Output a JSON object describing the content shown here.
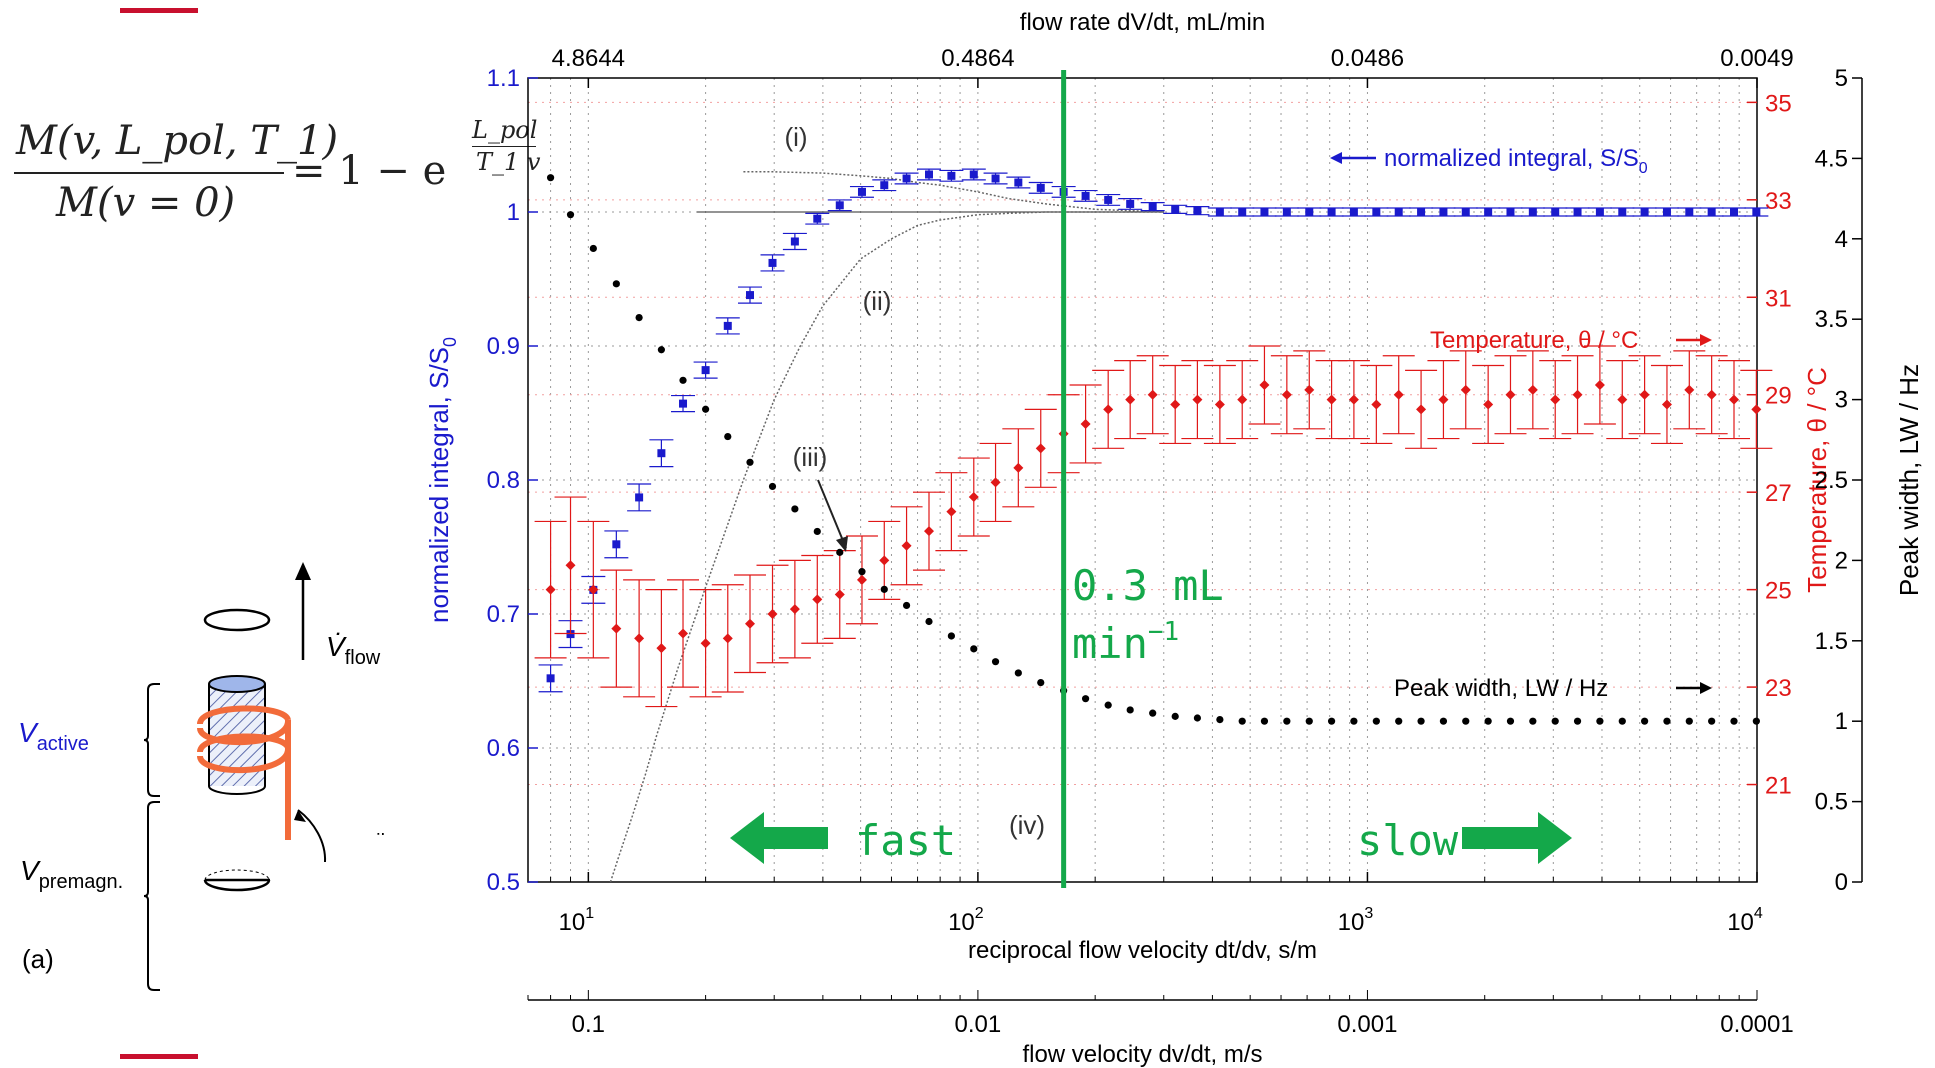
{
  "formula": {
    "numerator": "M(v, L_pol, T_1)",
    "denominator": "M(v = 0)",
    "rhs": "= 1 − e",
    "exponent_numerator": "L_pol",
    "exponent_denominator": "T_1 v"
  },
  "schematic": {
    "v_flow_label": "V̇",
    "v_flow_sub": "flow",
    "v_active_label": "V",
    "v_active_sub": "active",
    "v_premagn_label": "V",
    "v_premagn_sub": "premagn.",
    "coil_label": "coil",
    "panel_label": "(a)"
  },
  "colors": {
    "integral": "#1a1acc",
    "temperature": "#e01818",
    "peak_width": "#000000",
    "marker_line": "#14a84a",
    "grid": "#9a9a9a"
  },
  "chart_data": {
    "type": "scatter",
    "x_scale": "log",
    "xlim": [
      7,
      10000
    ],
    "xlabel": "reciprocal flow velocity dt/dv, s/m",
    "xticks": [
      {
        "value": 10,
        "label": "10",
        "sup": "1"
      },
      {
        "value": 100,
        "label": "10",
        "sup": "2"
      },
      {
        "value": 1000,
        "label": "10",
        "sup": "3"
      },
      {
        "value": 10000,
        "label": "10",
        "sup": "4"
      }
    ],
    "top_axis": {
      "label": "flow rate dV/dt, mL/min",
      "ticks": [
        {
          "x": 10,
          "label": "4.8644"
        },
        {
          "x": 100,
          "label": "0.4864"
        },
        {
          "x": 1000,
          "label": "0.0486"
        },
        {
          "x": 10000,
          "label": "0.0049"
        }
      ]
    },
    "bottom_axis2": {
      "label": "flow velocity dv/dt, m/s",
      "ticks": [
        {
          "x": 10,
          "label": "0.1"
        },
        {
          "x": 100,
          "label": "0.01"
        },
        {
          "x": 1000,
          "label": "0.001"
        },
        {
          "x": 10000,
          "label": "0.0001"
        }
      ]
    },
    "left_axis": {
      "label": "normalized integral, S/S",
      "label_sub": "0",
      "ylim": [
        0.5,
        1.1
      ],
      "ticks": [
        "0.5",
        "0.6",
        "0.7",
        "0.8",
        "0.9",
        "1",
        "1.1"
      ]
    },
    "right_axis": {
      "label": "Temperature, θ / °C",
      "ylim": [
        19,
        35.5
      ],
      "ticks": [
        "21",
        "23",
        "25",
        "27",
        "29",
        "31",
        "33",
        "35"
      ]
    },
    "far_right_axis": {
      "label": "Peak width, LW / Hz",
      "ylim": [
        0,
        5
      ],
      "ticks": [
        "0",
        "0.5",
        "1",
        "1.5",
        "2",
        "2.5",
        "3",
        "3.5",
        "4",
        "4.5",
        "5"
      ]
    },
    "series": [
      {
        "name": "normalized integral, S/S",
        "name_sub": "0",
        "axis": "left",
        "marker": "square",
        "x": [
          8,
          9,
          10.3,
          11.8,
          13.5,
          15.4,
          17.5,
          20,
          22.8,
          26,
          29.7,
          33.9,
          38.7,
          44.2,
          50.4,
          57.5,
          65.6,
          74.9,
          85.5,
          97.6,
          111,
          127,
          145,
          166,
          189,
          216,
          246,
          281,
          321,
          366,
          418,
          477,
          544,
          621,
          709,
          809,
          923,
          1054,
          1203,
          1373,
          1567,
          1788,
          2041,
          2329,
          2658,
          3034,
          3462,
          3951,
          4510,
          5146,
          5873,
          6702,
          7649,
          8729,
          9962
        ],
        "y": [
          0.652,
          0.685,
          0.718,
          0.752,
          0.787,
          0.82,
          0.857,
          0.882,
          0.915,
          0.938,
          0.962,
          0.978,
          0.995,
          1.005,
          1.015,
          1.02,
          1.025,
          1.028,
          1.027,
          1.028,
          1.025,
          1.022,
          1.018,
          1.015,
          1.012,
          1.009,
          1.006,
          1.004,
          1.002,
          1.001,
          1.0,
          1.0,
          1.0,
          1.0,
          1.0,
          1.0,
          1.0,
          1.0,
          1.0,
          1.0,
          1.0,
          1.0,
          1.0,
          1.0,
          1.0,
          1.0,
          1.0,
          1.0,
          1.0,
          1.0,
          1.0,
          1.0,
          1.0,
          1.0,
          1.0
        ],
        "err": [
          0.01,
          0.01,
          0.01,
          0.01,
          0.01,
          0.01,
          0.006,
          0.006,
          0.006,
          0.006,
          0.006,
          0.006,
          0.004,
          0.004,
          0.004,
          0.004,
          0.004,
          0.004,
          0.004,
          0.004,
          0.004,
          0.004,
          0.004,
          0.004,
          0.004,
          0.004,
          0.004,
          0.003,
          0.003,
          0.003,
          0.003,
          0.003,
          0.003,
          0.003,
          0.003,
          0.003,
          0.003,
          0.003,
          0.003,
          0.003,
          0.003,
          0.003,
          0.003,
          0.003,
          0.003,
          0.003,
          0.003,
          0.003,
          0.003,
          0.003,
          0.003,
          0.003,
          0.003,
          0.003,
          0.003
        ]
      },
      {
        "name": "Temperature, θ / °C",
        "axis": "right",
        "marker": "diamond",
        "x": [
          8,
          9,
          10.3,
          11.8,
          13.5,
          15.4,
          17.5,
          20,
          22.8,
          26,
          29.7,
          33.9,
          38.7,
          44.2,
          50.4,
          57.5,
          65.6,
          74.9,
          85.5,
          97.6,
          111,
          127,
          145,
          166,
          189,
          216,
          246,
          281,
          321,
          366,
          418,
          477,
          544,
          621,
          709,
          809,
          923,
          1054,
          1203,
          1373,
          1567,
          1788,
          2041,
          2329,
          2658,
          3034,
          3462,
          3951,
          4510,
          5146,
          5873,
          6702,
          7649,
          8729,
          9962
        ],
        "y": [
          25.0,
          25.5,
          25.0,
          24.2,
          24.0,
          23.8,
          24.1,
          23.9,
          24.0,
          24.3,
          24.5,
          24.6,
          24.8,
          24.9,
          25.2,
          25.6,
          25.9,
          26.2,
          26.6,
          26.9,
          27.2,
          27.5,
          27.9,
          28.2,
          28.4,
          28.7,
          28.9,
          29.0,
          28.8,
          28.9,
          28.8,
          28.9,
          29.2,
          29.0,
          29.1,
          28.9,
          28.9,
          28.8,
          29.0,
          28.7,
          28.9,
          29.1,
          28.8,
          29.0,
          29.1,
          28.9,
          29.0,
          29.2,
          28.9,
          29.0,
          28.8,
          29.1,
          29.0,
          28.9,
          28.7
        ],
        "err": [
          1.4,
          1.4,
          1.4,
          1.2,
          1.2,
          1.2,
          1.1,
          1.1,
          1.1,
          1.0,
          1.0,
          1.0,
          0.9,
          0.9,
          0.9,
          0.8,
          0.8,
          0.8,
          0.8,
          0.8,
          0.8,
          0.8,
          0.8,
          0.8,
          0.8,
          0.8,
          0.8,
          0.8,
          0.8,
          0.8,
          0.8,
          0.8,
          0.8,
          0.8,
          0.8,
          0.8,
          0.8,
          0.8,
          0.8,
          0.8,
          0.8,
          0.8,
          0.8,
          0.8,
          0.8,
          0.8,
          0.8,
          0.8,
          0.8,
          0.8,
          0.8,
          0.8,
          0.8,
          0.8,
          0.8
        ]
      },
      {
        "name": "Peak width, LW / Hz",
        "axis": "far_right",
        "marker": "dot",
        "x": [
          8,
          9,
          10.3,
          11.8,
          13.5,
          15.4,
          17.5,
          20,
          22.8,
          26,
          29.7,
          33.9,
          38.7,
          44.2,
          50.4,
          57.5,
          65.6,
          74.9,
          85.5,
          97.6,
          111,
          127,
          145,
          166,
          189,
          216,
          246,
          281,
          321,
          366,
          418,
          477,
          544,
          621,
          709,
          809,
          923,
          1054,
          1203,
          1373,
          1567,
          1788,
          2041,
          2329,
          2658,
          3034,
          3462,
          3951,
          4510,
          5146,
          5873,
          6702,
          7649,
          8729,
          9962
        ],
        "y": [
          4.38,
          4.15,
          3.94,
          3.72,
          3.51,
          3.31,
          3.12,
          2.94,
          2.77,
          2.61,
          2.46,
          2.32,
          2.18,
          2.05,
          1.93,
          1.82,
          1.72,
          1.62,
          1.53,
          1.45,
          1.37,
          1.3,
          1.24,
          1.19,
          1.14,
          1.1,
          1.07,
          1.05,
          1.03,
          1.02,
          1.01,
          1.0,
          1.0,
          1.0,
          1.0,
          1.0,
          1.0,
          1.0,
          1.0,
          1.0,
          1.0,
          1.0,
          1.0,
          1.0,
          1.0,
          1.0,
          1.0,
          1.0,
          1.0,
          1.0,
          1.0,
          1.0,
          1.0,
          1.0,
          1.0
        ]
      }
    ],
    "model_curves": {
      "i": {
        "x": [
          25,
          30,
          40,
          50,
          60,
          70,
          80,
          100,
          120,
          150,
          200,
          300
        ],
        "y": [
          1.03,
          1.03,
          1.029,
          1.027,
          1.025,
          1.022,
          1.02,
          1.015,
          1.01,
          1.006,
          1.002,
          1.0
        ]
      },
      "ii": {
        "x": [
          11.4,
          12,
          13,
          14,
          15,
          17,
          20,
          25,
          30,
          35,
          40,
          50,
          60,
          70,
          80,
          100,
          120,
          150,
          200,
          300
        ],
        "y": [
          0.5,
          0.52,
          0.55,
          0.58,
          0.61,
          0.66,
          0.72,
          0.8,
          0.86,
          0.9,
          0.93,
          0.965,
          0.98,
          0.99,
          0.994,
          0.998,
          0.999,
          1.0,
          1.0,
          1.0
        ]
      },
      "hline": {
        "x": [
          19,
          300
        ],
        "y": [
          1.0,
          1.0
        ]
      }
    },
    "marker_x": 166,
    "annotations": {
      "i": "(i)",
      "ii": "(ii)",
      "iii": "(iii)",
      "iv": "(iv)",
      "flow_rate": "0.3 mL",
      "flow_unit": "min",
      "flow_exp": "−1",
      "fast": "fast",
      "slow": "slow",
      "legend_integral": "normalized integral, S/S",
      "legend_integral_sub": "0",
      "legend_temperature": "Temperature, θ / °C",
      "legend_peak": "Peak width, LW / Hz"
    }
  }
}
